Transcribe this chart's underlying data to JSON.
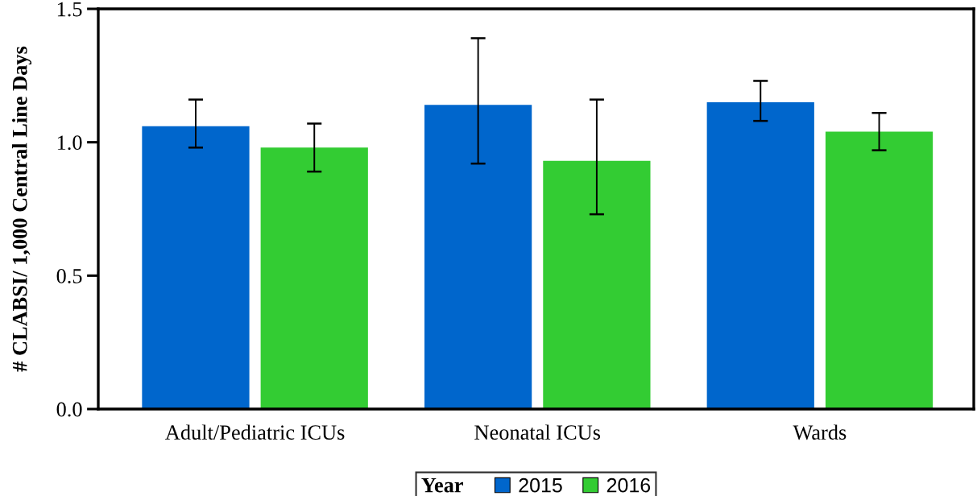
{
  "chart_data": {
    "type": "bar",
    "ylabel": "# CLABSI/ 1,000 Central Line Days",
    "legend_title": "Year",
    "categories": [
      "Adult/Pediatric ICUs",
      "Neonatal ICUs",
      "Wards"
    ],
    "series": [
      {
        "name": "2015",
        "color": "#0066cc",
        "values": [
          1.06,
          1.14,
          1.15
        ],
        "errors": [
          [
            0.98,
            1.16
          ],
          [
            0.92,
            1.39
          ],
          [
            1.08,
            1.23
          ]
        ]
      },
      {
        "name": "2016",
        "color": "#33cc33",
        "values": [
          0.98,
          0.93,
          1.04
        ],
        "errors": [
          [
            0.89,
            1.07
          ],
          [
            0.73,
            1.16
          ],
          [
            0.97,
            1.11
          ]
        ]
      }
    ],
    "ylim": [
      0,
      1.5
    ],
    "yticks": [
      {
        "value": 0,
        "label": "0.0"
      },
      {
        "value": 0.5,
        "label": "0.5"
      },
      {
        "value": 1,
        "label": "1.0"
      },
      {
        "value": 1.5,
        "label": "1.5"
      }
    ],
    "legend": "bottom"
  }
}
